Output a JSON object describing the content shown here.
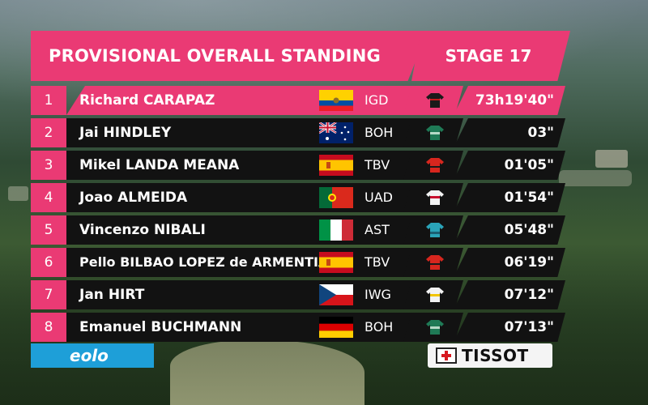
{
  "header": {
    "title": "PROVISIONAL OVERALL STANDING",
    "stage": "STAGE 17"
  },
  "riders": [
    {
      "position": "1",
      "name": "Richard CARAPAZ",
      "team": "IGD",
      "time": "73h19'40\"",
      "flag": "ecuador-flag",
      "jersey": "black-jersey-icon"
    },
    {
      "position": "2",
      "name": "Jai HINDLEY",
      "team": "BOH",
      "time": "03\"",
      "flag": "australia-flag",
      "jersey": "green-jersey-icon"
    },
    {
      "position": "3",
      "name": "Mikel LANDA MEANA",
      "team": "TBV",
      "time": "01'05\"",
      "flag": "spain-flag",
      "jersey": "red-jersey-icon"
    },
    {
      "position": "4",
      "name": "Joao ALMEIDA",
      "team": "UAD",
      "time": "01'54\"",
      "flag": "portugal-flag",
      "jersey": "white-jersey-icon"
    },
    {
      "position": "5",
      "name": "Vincenzo NIBALI",
      "team": "AST",
      "time": "05'48\"",
      "flag": "italy-flag",
      "jersey": "teal-jersey-icon"
    },
    {
      "position": "6",
      "name": "Pello BILBAO LOPEZ de ARMENTIA",
      "team": "TBV",
      "time": "06'19\"",
      "flag": "spain-flag",
      "jersey": "red-jersey-icon"
    },
    {
      "position": "7",
      "name": "Jan HIRT",
      "team": "IWG",
      "time": "07'12\"",
      "flag": "czech-flag",
      "jersey": "white-jersey-icon"
    },
    {
      "position": "8",
      "name": "Emanuel BUCHMANN",
      "team": "BOH",
      "time": "07'13\"",
      "flag": "germany-flag",
      "jersey": "green-jersey-icon"
    }
  ],
  "sponsors": {
    "left": "eolo",
    "right": "TISSOT"
  },
  "colors": {
    "accent": "#ea3a74",
    "bar": "#121212",
    "eolo": "#1e9fd8"
  }
}
